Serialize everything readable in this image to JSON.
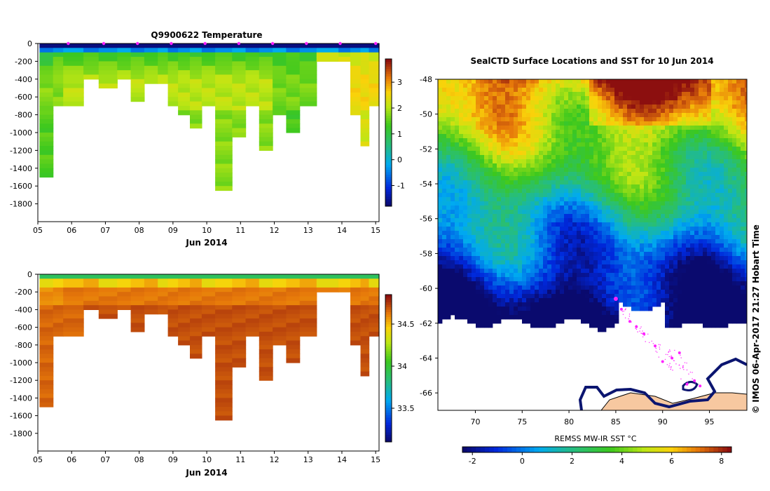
{
  "chart_data": [
    {
      "type": "heatmap",
      "title": "Q9900622  Temperature",
      "xlabel": "Jun 2014",
      "x_ticks": [
        "05",
        "06",
        "07",
        "08",
        "09",
        "10",
        "11",
        "12",
        "13",
        "14",
        "15"
      ],
      "y_ticks": [
        "0",
        "-200",
        "-400",
        "-600",
        "-800",
        "-1000",
        "-1200",
        "-1400",
        "-1600",
        "-1800"
      ],
      "ylim": [
        -2000,
        0
      ],
      "colorbar_ticks": [
        "-1",
        "0",
        "1",
        "2",
        "3"
      ],
      "colorbar_range": [
        -1.8,
        3.9
      ],
      "profile_max_depth": [
        -1500,
        -700,
        -660,
        -380,
        -500,
        -380,
        -650,
        -420,
        -440,
        -700,
        -780,
        -920,
        -700,
        -1640,
        -1010,
        -700,
        -1180,
        -800,
        -1000,
        -700,
        -190,
        -190,
        -780,
        -1140,
        -680
      ],
      "profile_day": [
        5.1,
        5.5,
        5.8,
        6.4,
        6.85,
        7.4,
        7.8,
        8.2,
        8.6,
        8.9,
        9.2,
        9.55,
        9.9,
        10.3,
        10.8,
        11.2,
        11.6,
        12.0,
        12.4,
        12.8,
        13.3,
        13.95,
        14.3,
        14.6,
        14.85
      ],
      "surface_positions": [
        5.9,
        6.95,
        7.95,
        8.95,
        9.95,
        10.95,
        11.95,
        12.95,
        13.95,
        15.0
      ]
    },
    {
      "type": "heatmap",
      "title": "",
      "xlabel": "Jun 2014",
      "x_ticks": [
        "05",
        "06",
        "07",
        "08",
        "09",
        "10",
        "11",
        "12",
        "13",
        "14",
        "15"
      ],
      "y_ticks": [
        "0",
        "-200",
        "-400",
        "-600",
        "-800",
        "-1000",
        "-1200",
        "-1400",
        "-1600",
        "-1800"
      ],
      "ylim": [
        -2000,
        0
      ],
      "colorbar_ticks": [
        "33.5",
        "34",
        "34.5"
      ],
      "colorbar_range": [
        33.1,
        34.85
      ]
    },
    {
      "type": "heatmap",
      "title": "SealCTD Surface Locations and SST for 10 Jun 2014",
      "x_ticks": [
        "70",
        "75",
        "80",
        "85",
        "90",
        "95"
      ],
      "y_ticks": [
        "-48",
        "-50",
        "-52",
        "-54",
        "-56",
        "-58",
        "-60",
        "-62",
        "-64",
        "-66"
      ],
      "xlim": [
        66,
        99
      ],
      "ylim": [
        -67,
        -48
      ],
      "colorbar_label": "REMSS MW-IR SST °C",
      "colorbar_ticks": [
        "-2",
        "0",
        "2",
        "4",
        "6",
        "8"
      ],
      "colorbar_range": [
        -2.4,
        8.4
      ],
      "side_label": "© IMOS 06-Apr-2017 21:27 Hobart Time",
      "track_points": [
        [
          85.0,
          -60.6
        ],
        [
          86.5,
          -61.9
        ],
        [
          88.0,
          -62.6
        ],
        [
          89.2,
          -63.3
        ],
        [
          90.0,
          -64.2
        ],
        [
          91.0,
          -64.0
        ],
        [
          91.8,
          -63.7
        ],
        [
          92.6,
          -65.5
        ],
        [
          93.4,
          -65.3
        ],
        [
          94.0,
          -65.6
        ],
        [
          85.6,
          -61.2
        ],
        [
          87.2,
          -62.2
        ]
      ],
      "colors": {
        "land": "#f7c8a0",
        "ice_edge": "#0b1570",
        "track": "#ff22ff",
        "no_data": "#ffffff"
      }
    }
  ]
}
